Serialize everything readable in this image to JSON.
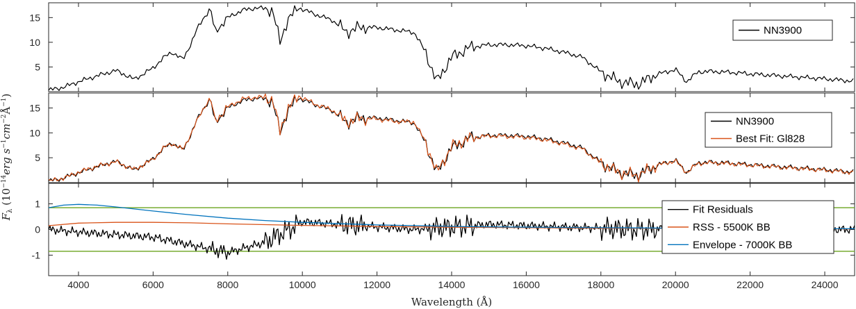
{
  "figure": {
    "xlabel": "Wavelength (Å)",
    "ylabel": "F",
    "ylabel_sub": "λ",
    "ylabel_rest": " (10",
    "ylabel_exp1": "−14",
    "ylabel_mid": "erg s",
    "ylabel_exp2": "−1",
    "ylabel_cm": "cm",
    "ylabel_exp3": "−2",
    "ylabel_ang": "Å",
    "ylabel_exp4": "−1",
    "ylabel_close": ")"
  },
  "chart_data": [
    {
      "type": "line",
      "panel": "top",
      "xlim": [
        3200,
        24800
      ],
      "ylim": [
        0,
        18
      ],
      "yticks": [
        "5",
        "10",
        "15"
      ],
      "ytick_values": [
        5,
        10,
        15
      ],
      "legend_position": "top-right",
      "series": [
        {
          "name": "NN3900",
          "color": "#000000",
          "x": [
            3200,
            3600,
            4000,
            4500,
            5000,
            5500,
            6000,
            6300,
            6500,
            6800,
            7000,
            7200,
            7400,
            7550,
            7650,
            8000,
            8400,
            8800,
            9200,
            9400,
            9600,
            9900,
            10400,
            10800,
            11200,
            11500,
            12000,
            12500,
            13000,
            13300,
            13600,
            14000,
            14500,
            15000,
            15500,
            16000,
            16500,
            17000,
            17500,
            18000,
            18500,
            19000,
            19500,
            20000,
            20300,
            20600,
            21000,
            21500,
            22000,
            23000,
            24000,
            24800
          ],
          "y": [
            0.3,
            0.9,
            2.0,
            3.2,
            4.3,
            2.5,
            4.8,
            7.0,
            8.0,
            6.5,
            9.5,
            13.0,
            15.5,
            16.5,
            12.0,
            15.0,
            16.5,
            17.0,
            16.5,
            10.0,
            14.5,
            17.0,
            15.5,
            14.5,
            12.0,
            13.0,
            13.0,
            12.5,
            12.0,
            8.0,
            2.0,
            7.0,
            9.0,
            9.5,
            9.5,
            9.3,
            8.8,
            8.0,
            7.0,
            4.0,
            2.0,
            1.5,
            3.5,
            4.5,
            2.0,
            4.0,
            4.1,
            3.9,
            3.6,
            3.1,
            2.6,
            2.1
          ]
        }
      ]
    },
    {
      "type": "line",
      "panel": "middle",
      "xlim": [
        3200,
        24800
      ],
      "ylim": [
        0,
        18
      ],
      "yticks": [
        "5",
        "10",
        "15"
      ],
      "ytick_values": [
        5,
        10,
        15
      ],
      "legend_position": "top-right",
      "series": [
        {
          "name": "NN3900",
          "color": "#000000",
          "x": [
            3200,
            3600,
            4000,
            4500,
            5000,
            5500,
            6000,
            6300,
            6500,
            6800,
            7000,
            7200,
            7400,
            7550,
            7650,
            8000,
            8400,
            8800,
            9200,
            9400,
            9600,
            9900,
            10400,
            10800,
            11200,
            11500,
            12000,
            12500,
            13000,
            13300,
            13600,
            14000,
            14500,
            15000,
            15500,
            16000,
            16500,
            17000,
            17500,
            18000,
            18500,
            19000,
            19500,
            20000,
            20300,
            20600,
            21000,
            21500,
            22000,
            23000,
            24000,
            24800
          ],
          "y": [
            0.3,
            0.9,
            2.0,
            3.2,
            4.3,
            2.5,
            4.8,
            7.0,
            8.0,
            6.5,
            9.5,
            13.0,
            15.5,
            16.5,
            12.0,
            15.0,
            16.5,
            17.0,
            16.5,
            10.0,
            14.5,
            17.0,
            15.5,
            14.5,
            12.0,
            13.0,
            13.0,
            12.5,
            12.0,
            8.0,
            2.0,
            7.0,
            9.0,
            9.5,
            9.5,
            9.3,
            8.8,
            8.0,
            7.0,
            4.0,
            2.0,
            1.5,
            3.5,
            4.5,
            2.0,
            4.0,
            4.1,
            3.9,
            3.6,
            3.1,
            2.6,
            2.1
          ]
        },
        {
          "name": "Best Fit: Gl828",
          "color": "#d95319",
          "x": [
            3200,
            3600,
            4000,
            4500,
            5000,
            5500,
            6000,
            6300,
            6500,
            6800,
            7000,
            7200,
            7400,
            7550,
            7650,
            8000,
            8400,
            8800,
            9200,
            9400,
            9600,
            9900,
            10400,
            10800,
            11200,
            11500,
            12000,
            12500,
            13000,
            13300,
            13600,
            14000,
            14500,
            15000,
            15500,
            16000,
            16500,
            17000,
            17500,
            18000,
            18500,
            19000,
            19500,
            20000,
            20300,
            20600,
            21000,
            21500,
            22000,
            23000,
            24000,
            24800
          ],
          "y": [
            0.3,
            0.9,
            2.1,
            3.3,
            4.2,
            2.6,
            4.7,
            7.1,
            7.9,
            6.6,
            9.6,
            12.8,
            15.6,
            16.8,
            12.2,
            15.2,
            16.8,
            17.2,
            16.8,
            10.2,
            14.8,
            17.4,
            15.6,
            14.6,
            12.1,
            12.9,
            12.8,
            12.3,
            12.2,
            8.2,
            2.0,
            7.2,
            9.0,
            9.4,
            9.3,
            9.1,
            8.6,
            7.8,
            6.8,
            3.9,
            2.0,
            1.5,
            3.5,
            4.4,
            2.0,
            3.9,
            4.0,
            3.8,
            3.5,
            3.0,
            2.5,
            2.0
          ]
        }
      ]
    },
    {
      "type": "line",
      "panel": "bottom",
      "xlim": [
        3200,
        24800
      ],
      "ylim": [
        -1.8,
        1.8
      ],
      "yticks": [
        "-1",
        "0",
        "1"
      ],
      "ytick_values": [
        -1,
        0,
        1
      ],
      "xticks": [
        "4000",
        "6000",
        "8000",
        "10000",
        "12000",
        "14000",
        "16000",
        "18000",
        "20000",
        "22000",
        "24000"
      ],
      "xtick_values": [
        4000,
        6000,
        8000,
        10000,
        12000,
        14000,
        16000,
        18000,
        20000,
        22000,
        24000
      ],
      "legend_position": "right",
      "hlines": [
        {
          "y": 0.85,
          "color": "#77ac30"
        },
        {
          "y": -0.85,
          "color": "#77ac30"
        }
      ],
      "series": [
        {
          "name": "Fit Residuals",
          "color": "#000000",
          "x": [
            3200,
            4000,
            5000,
            6000,
            7000,
            8000,
            9000,
            10000,
            11000,
            12000,
            13000,
            14000,
            15000,
            16000,
            17000,
            18000,
            19000,
            20000,
            21000,
            22000,
            23000,
            24000,
            24800
          ],
          "y": [
            0.0,
            -0.1,
            -0.2,
            -0.3,
            -0.6,
            -0.9,
            -0.5,
            0.3,
            0.2,
            0.1,
            0.0,
            0.1,
            0.2,
            0.15,
            0.1,
            0.05,
            0.0,
            0.05,
            0.0,
            0.0,
            0.05,
            0.0,
            0.0
          ]
        },
        {
          "name": "RSS - 5500K BB",
          "color": "#d95319",
          "x": [
            3200,
            4000,
            5000,
            6000,
            7000,
            8000,
            9000,
            10000,
            12000,
            14000,
            16000,
            18000,
            20000,
            22000,
            24000,
            24800
          ],
          "y": [
            0.15,
            0.25,
            0.28,
            0.28,
            0.26,
            0.22,
            0.19,
            0.16,
            0.12,
            0.09,
            0.07,
            0.05,
            0.04,
            0.03,
            0.03,
            0.02
          ]
        },
        {
          "name": "Envelope - 7000K BB",
          "color": "#0072bd",
          "x": [
            3200,
            3600,
            4000,
            4500,
            5000,
            6000,
            7000,
            8000,
            9000,
            10000,
            12000,
            14000,
            16000,
            18000,
            20000,
            22000,
            24000,
            24800
          ],
          "y": [
            0.85,
            0.95,
            0.98,
            0.95,
            0.88,
            0.72,
            0.57,
            0.44,
            0.35,
            0.28,
            0.18,
            0.12,
            0.09,
            0.07,
            0.05,
            0.04,
            0.03,
            0.03
          ]
        }
      ]
    }
  ]
}
